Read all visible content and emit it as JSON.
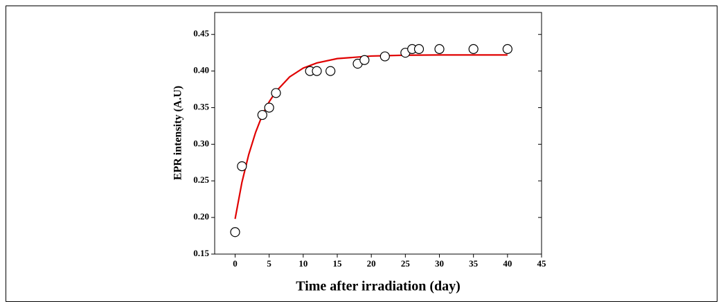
{
  "chart_data": {
    "type": "scatter",
    "x_label": "Time after irradiation (day)",
    "y_label": "EPR intensity (A.U)",
    "xlim": [
      -3,
      45
    ],
    "xticks": [
      0,
      5,
      10,
      15,
      20,
      25,
      30,
      35,
      40,
      45
    ],
    "ylim": [
      0.15,
      0.48
    ],
    "yticks": [
      0.15,
      {
        "value": 0.2,
        "label": "0.20"
      },
      0.25,
      {
        "value": 0.3,
        "label": "0.30"
      },
      0.35,
      {
        "value": 0.4,
        "label": "0.40"
      },
      0.45
    ],
    "grid": false,
    "series": [
      {
        "type": "line",
        "color": "#e00000",
        "x": [
          0,
          1,
          2,
          3,
          4,
          5,
          6,
          8,
          10,
          12,
          15,
          20,
          25,
          30,
          35,
          40
        ],
        "values": [
          0.198,
          0.248,
          0.286,
          0.316,
          0.34,
          0.358,
          0.372,
          0.392,
          0.404,
          0.411,
          0.417,
          0.4205,
          0.4216,
          0.422,
          0.422,
          0.422
        ]
      },
      {
        "type": "scatter",
        "color": "#000000",
        "x": [
          0,
          1,
          4,
          5,
          6,
          11,
          12,
          14,
          18,
          19,
          22,
          25,
          26,
          27,
          30,
          35,
          40
        ],
        "values": [
          0.18,
          0.27,
          0.34,
          0.35,
          0.37,
          0.4,
          0.4,
          0.4,
          0.41,
          0.415,
          0.42,
          0.425,
          0.43,
          0.43,
          0.43,
          0.43,
          0.43
        ]
      }
    ]
  }
}
